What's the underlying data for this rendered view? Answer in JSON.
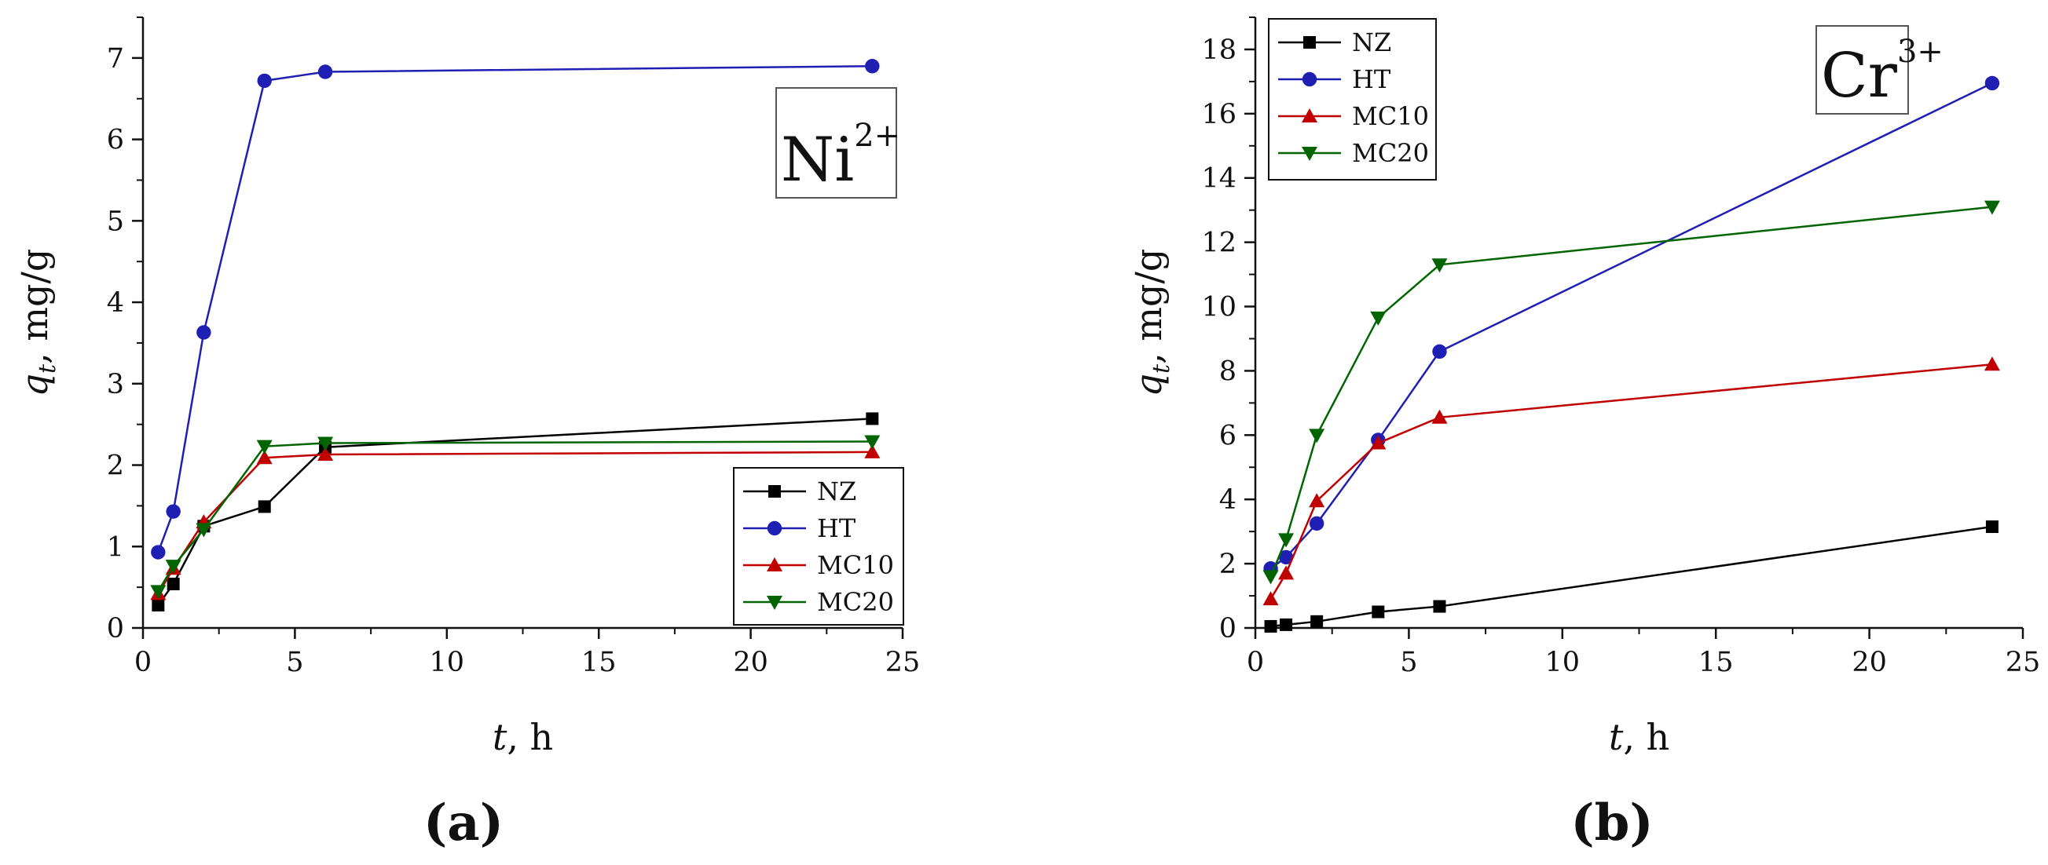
{
  "figure": {
    "panel_labels": [
      "(a)",
      "(b)"
    ]
  },
  "chart_data": [
    {
      "type": "line",
      "ion_main": "Ni",
      "ion_sup": "2+",
      "xlabel_var": "t",
      "xlabel_unit": ", h",
      "ylabel_var": "q",
      "ylabel_sub": "t",
      "ylabel_unit": ", mg/g",
      "xlim": [
        0,
        25
      ],
      "ylim": [
        0,
        7.5
      ],
      "xticks": [
        0,
        5,
        10,
        15,
        20,
        25
      ],
      "yticks": [
        0,
        1,
        2,
        3,
        4,
        5,
        6,
        7
      ],
      "legend_position": "bottom-right",
      "x": [
        0.5,
        1,
        2,
        4,
        6,
        24
      ],
      "series": [
        {
          "name": "NZ",
          "marker": "square",
          "color": "#000000",
          "values": [
            0.28,
            0.54,
            1.25,
            1.49,
            2.22,
            2.57
          ]
        },
        {
          "name": "HT",
          "marker": "circle",
          "color": "#1f1fb4",
          "values": [
            0.93,
            1.43,
            3.63,
            6.72,
            6.83,
            6.9
          ]
        },
        {
          "name": "MC10",
          "marker": "triangle-up",
          "color": "#c00000",
          "values": [
            0.42,
            0.73,
            1.3,
            2.09,
            2.13,
            2.16
          ]
        },
        {
          "name": "MC20",
          "marker": "triangle-down",
          "color": "#006400",
          "values": [
            0.45,
            0.76,
            1.21,
            2.23,
            2.27,
            2.29
          ]
        }
      ]
    },
    {
      "type": "line",
      "ion_main": "Cr",
      "ion_sup": "3+",
      "xlabel_var": "t",
      "xlabel_unit": ", h",
      "ylabel_var": "q",
      "ylabel_sub": "t",
      "ylabel_unit": ", mg/g",
      "xlim": [
        0,
        25
      ],
      "ylim": [
        0,
        19
      ],
      "xticks": [
        0,
        5,
        10,
        15,
        20,
        25
      ],
      "yticks": [
        0,
        2,
        4,
        6,
        8,
        10,
        12,
        14,
        16,
        18
      ],
      "legend_position": "top-left",
      "x": [
        0.5,
        1,
        2,
        4,
        6,
        24
      ],
      "series": [
        {
          "name": "NZ",
          "marker": "square",
          "color": "#000000",
          "values": [
            0.05,
            0.1,
            0.2,
            0.5,
            0.67,
            3.15
          ]
        },
        {
          "name": "HT",
          "marker": "circle",
          "color": "#1f1fb4",
          "values": [
            1.85,
            2.2,
            3.25,
            5.85,
            8.6,
            16.95
          ]
        },
        {
          "name": "MC10",
          "marker": "triangle-up",
          "color": "#c00000",
          "values": [
            0.9,
            1.7,
            3.95,
            5.75,
            6.55,
            8.2
          ]
        },
        {
          "name": "MC20",
          "marker": "triangle-down",
          "color": "#006400",
          "values": [
            1.6,
            2.75,
            6.0,
            9.65,
            11.3,
            13.1
          ]
        }
      ]
    }
  ]
}
